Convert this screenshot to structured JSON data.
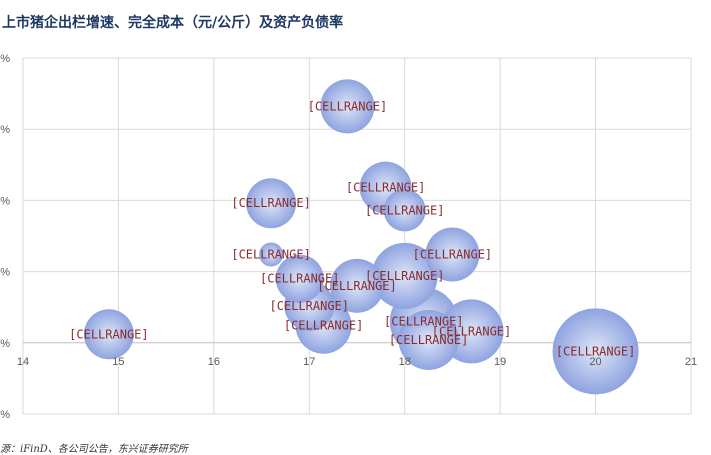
{
  "title": "上市猪企出栏增速、完全成本（元/公斤）及资产负债率",
  "footer": "源：iFinD、各公司公告，东兴证券研究所",
  "colors": {
    "bubble_center": "#dfe6f8",
    "bubble_edge": "#8ea3e0",
    "grid": "#d9d9d9",
    "label": "#8b2c2c"
  },
  "chart_data": {
    "type": "scatter",
    "subtype": "bubble",
    "title": "上市猪企出栏增速、完全成本（元/公斤）及资产负债率",
    "xlabel": "",
    "ylabel": "",
    "xlim": [
      14,
      21
    ],
    "ylim": [
      -0.1,
      0.4
    ],
    "x_ticks": [
      "14",
      "15",
      "16",
      "17",
      "18",
      "19",
      "20",
      "21"
    ],
    "y_ticks": [
      "%",
      "%",
      "%",
      "%",
      "%",
      "%"
    ],
    "grid": true,
    "points": [
      {
        "x": 14.9,
        "y": 0.012,
        "r": 25,
        "label": "[CELLRANGE]"
      },
      {
        "x": 17.4,
        "y": 0.332,
        "r": 27,
        "label": "[CELLRANGE]"
      },
      {
        "x": 16.6,
        "y": 0.196,
        "r": 25,
        "label": "[CELLRANGE]"
      },
      {
        "x": 17.8,
        "y": 0.218,
        "r": 26,
        "label": "[CELLRANGE]"
      },
      {
        "x": 18.0,
        "y": 0.186,
        "r": 21,
        "label": "[CELLRANGE]"
      },
      {
        "x": 16.6,
        "y": 0.124,
        "r": 12,
        "label": "[CELLRANGE]"
      },
      {
        "x": 18.5,
        "y": 0.124,
        "r": 27,
        "label": "[CELLRANGE]"
      },
      {
        "x": 16.9,
        "y": 0.09,
        "r": 24,
        "label": "[CELLRANGE]"
      },
      {
        "x": 17.5,
        "y": 0.08,
        "r": 27,
        "label": "[CELLRANGE]"
      },
      {
        "x": 18.0,
        "y": 0.094,
        "r": 33,
        "label": "[CELLRANGE]"
      },
      {
        "x": 17.0,
        "y": 0.052,
        "r": 25,
        "label": "[CELLRANGE]"
      },
      {
        "x": 17.15,
        "y": 0.024,
        "r": 28,
        "label": "[CELLRANGE]"
      },
      {
        "x": 18.2,
        "y": 0.03,
        "r": 34,
        "label": "[CELLRANGE]"
      },
      {
        "x": 18.7,
        "y": 0.016,
        "r": 32,
        "label": "[CELLRANGE]"
      },
      {
        "x": 18.25,
        "y": 0.004,
        "r": 30,
        "label": "[CELLRANGE]"
      },
      {
        "x": 20.0,
        "y": -0.012,
        "r": 43,
        "label": "[CELLRANGE]"
      }
    ]
  }
}
